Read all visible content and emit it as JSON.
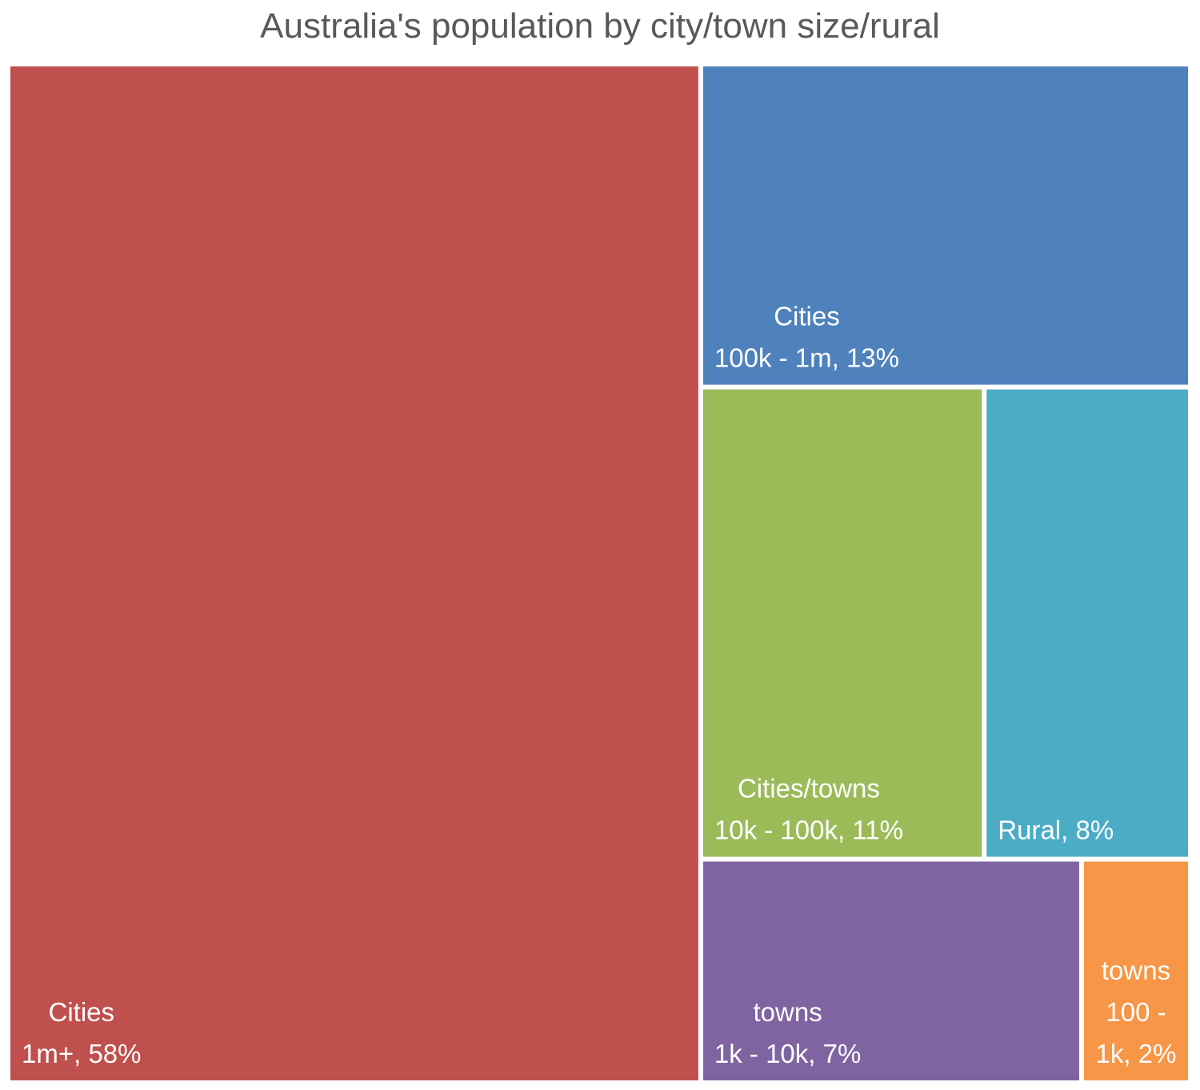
{
  "chart_data": {
    "type": "treemap",
    "title": "Australia's population by city/town size/rural",
    "items": [
      {
        "label_line1": "Cities",
        "label_line2": "1m+, 58%",
        "label_line3": "",
        "value": 58,
        "color": "#C0504D"
      },
      {
        "label_line1": "Cities",
        "label_line2": "100k - 1m, 13%",
        "label_line3": "",
        "value": 13,
        "color": "#4F81BD"
      },
      {
        "label_line1": "Cities/towns",
        "label_line2": "10k - 100k, 11%",
        "label_line3": "",
        "value": 11,
        "color": "#9BBB59"
      },
      {
        "label_line1": "",
        "label_line2": "Rural, 8%",
        "label_line3": "",
        "value": 8,
        "color": "#4BACC6"
      },
      {
        "label_line1": "towns",
        "label_line2": "1k - 10k, 7%",
        "label_line3": "",
        "value": 7,
        "color": "#8064A2"
      },
      {
        "label_line1": "towns",
        "label_line2": "100 -",
        "label_line3": "1k, 2%",
        "value": 2,
        "color": "#F79646"
      }
    ]
  }
}
